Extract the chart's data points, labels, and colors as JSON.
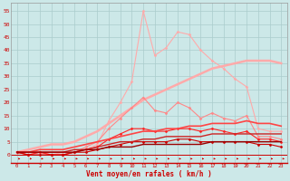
{
  "bg_color": "#cce8e8",
  "grid_color": "#aacccc",
  "xlabel": "Vent moyen/en rafales ( km/h )",
  "xlabel_color": "#cc0000",
  "tick_color": "#cc0000",
  "x_ticks": [
    0,
    1,
    2,
    3,
    4,
    5,
    6,
    7,
    8,
    9,
    10,
    11,
    12,
    13,
    14,
    15,
    16,
    17,
    18,
    19,
    20,
    21,
    22,
    23
  ],
  "ylim": [
    -3,
    58
  ],
  "yticks": [
    0,
    5,
    10,
    15,
    20,
    25,
    30,
    35,
    40,
    45,
    50,
    55
  ],
  "lines": [
    {
      "color": "#ffaaaa",
      "lw": 0.8,
      "marker": "D",
      "markersize": 1.5,
      "y": [
        1,
        1,
        1,
        0,
        1,
        1,
        2,
        4,
        13,
        20,
        28,
        55,
        38,
        41,
        47,
        46,
        40,
        36,
        33,
        29,
        26,
        10,
        9,
        9
      ]
    },
    {
      "color": "#ffaaaa",
      "lw": 1.8,
      "marker": null,
      "markersize": 0,
      "y": [
        1,
        2,
        3,
        4,
        4,
        5,
        7,
        9,
        12,
        15,
        18,
        21,
        23,
        25,
        27,
        29,
        31,
        33,
        34,
        35,
        36,
        36,
        36,
        35
      ]
    },
    {
      "color": "#ff8888",
      "lw": 0.8,
      "marker": "D",
      "markersize": 1.5,
      "y": [
        1,
        0,
        1,
        0,
        0,
        1,
        3,
        5,
        10,
        14,
        18,
        22,
        17,
        16,
        20,
        18,
        14,
        16,
        14,
        13,
        15,
        7,
        7,
        6
      ]
    },
    {
      "color": "#ff2222",
      "lw": 0.8,
      "marker": "D",
      "markersize": 1.5,
      "y": [
        1,
        0,
        1,
        0,
        0,
        1,
        2,
        3,
        6,
        8,
        10,
        10,
        9,
        9,
        10,
        10,
        9,
        10,
        9,
        8,
        9,
        6,
        6,
        5
      ]
    },
    {
      "color": "#ff4444",
      "lw": 1.2,
      "marker": null,
      "markersize": 0,
      "y": [
        1,
        1,
        2,
        2,
        2,
        3,
        4,
        5,
        6,
        7,
        8,
        9,
        9,
        10,
        10,
        11,
        11,
        12,
        12,
        12,
        13,
        12,
        12,
        11
      ]
    },
    {
      "color": "#cc0000",
      "lw": 0.8,
      "marker": "D",
      "markersize": 1.5,
      "y": [
        1,
        0,
        0,
        0,
        0,
        1,
        1,
        2,
        3,
        4,
        5,
        5,
        5,
        5,
        6,
        6,
        5,
        5,
        5,
        5,
        5,
        4,
        4,
        3
      ]
    },
    {
      "color": "#cc2222",
      "lw": 1.0,
      "marker": null,
      "markersize": 0,
      "y": [
        1,
        1,
        1,
        1,
        1,
        2,
        2,
        3,
        4,
        5,
        5,
        6,
        6,
        7,
        7,
        7,
        7,
        8,
        8,
        8,
        8,
        8,
        8,
        8
      ]
    },
    {
      "color": "#990000",
      "lw": 1.0,
      "marker": null,
      "markersize": 0,
      "y": [
        1,
        1,
        1,
        1,
        1,
        1,
        2,
        2,
        3,
        3,
        3,
        4,
        4,
        4,
        4,
        4,
        4,
        5,
        5,
        5,
        5,
        5,
        5,
        5
      ]
    }
  ]
}
